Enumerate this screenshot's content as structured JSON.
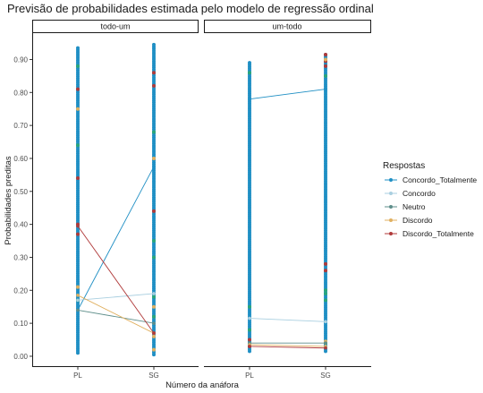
{
  "chart_data": {
    "type": "scatter",
    "title": "Previsão de probabilidades estimada pelo modelo de regressão ordinal",
    "xlabel": "Número da anáfora",
    "ylabel": "Probabilidades preditas",
    "categories": [
      "PL",
      "SG"
    ],
    "ylim": [
      -0.03,
      0.98
    ],
    "yticks": [
      0.0,
      0.1,
      0.2,
      0.3,
      0.4,
      0.5,
      0.6,
      0.7,
      0.8,
      0.9
    ],
    "ytick_labels": [
      "0.00",
      "0.10",
      "0.20",
      "0.30",
      "0.40",
      "0.50",
      "0.60",
      "0.70",
      "0.80",
      "0.90"
    ],
    "grid": false,
    "legend": {
      "title": "Respostas",
      "position": "right",
      "entries": [
        "Concordo_Totalmente",
        "Concordo",
        "Neutro",
        "Discordo",
        "Discordo_Totalmente"
      ]
    },
    "colors": {
      "Concordo_Totalmente": "#1f8fc4",
      "Concordo": "#a9cfe0",
      "Neutro": "#5e8e8a",
      "Discordo": "#e0b060",
      "Discordo_Totalmente": "#b03a3a",
      "Neutro_points": "#2aa67a"
    },
    "panels": [
      {
        "label": "todo-um",
        "ranges": {
          "PL": [
            0.01,
            0.935
          ],
          "SG": [
            0.005,
            0.945
          ]
        },
        "lines": [
          {
            "series": "Concordo_Totalmente",
            "values": [
              0.14,
              0.575
            ]
          },
          {
            "series": "Concordo",
            "values": [
              0.17,
              0.19
            ]
          },
          {
            "series": "Neutro",
            "values": [
              0.14,
              0.1
            ]
          },
          {
            "series": "Discordo",
            "values": [
              0.185,
              0.07
            ]
          },
          {
            "series": "Discordo_Totalmente",
            "values": [
              0.395,
              0.07
            ]
          }
        ],
        "accents": [
          {
            "series": "Discordo_Totalmente",
            "cat": "PL",
            "values": [
              0.81,
              0.54,
              0.4,
              0.37
            ]
          },
          {
            "series": "Discordo_Totalmente",
            "cat": "SG",
            "values": [
              0.86,
              0.82,
              0.44,
              0.07
            ]
          },
          {
            "series": "Neutro_points",
            "cat": "PL",
            "values": [
              0.88,
              0.64,
              0.17
            ]
          },
          {
            "series": "Neutro_points",
            "cat": "SG",
            "values": [
              0.68,
              0.35,
              0.3,
              0.18,
              0.12
            ]
          },
          {
            "series": "Discordo",
            "cat": "PL",
            "values": [
              0.75,
              0.21
            ]
          },
          {
            "series": "Discordo",
            "cat": "SG",
            "values": [
              0.6,
              0.15,
              0.06,
              0.02
            ]
          }
        ]
      },
      {
        "label": "um-todo",
        "ranges": {
          "PL": [
            0.015,
            0.89
          ],
          "SG": [
            0.015,
            0.915
          ]
        },
        "lines": [
          {
            "series": "Concordo_Totalmente",
            "values": [
              0.78,
              0.81
            ]
          },
          {
            "series": "Concordo",
            "values": [
              0.115,
              0.105
            ]
          },
          {
            "series": "Neutro",
            "values": [
              0.04,
              0.04
            ]
          },
          {
            "series": "Discordo",
            "values": [
              0.035,
              0.03
            ]
          },
          {
            "series": "Discordo_Totalmente",
            "values": [
              0.03,
              0.025
            ]
          }
        ],
        "accents": [
          {
            "series": "Discordo_Totalmente",
            "cat": "SG",
            "values": [
              0.915,
              0.895,
              0.88,
              0.28,
              0.26
            ]
          },
          {
            "series": "Discordo_Totalmente",
            "cat": "PL",
            "values": [
              0.03,
              0.05
            ]
          },
          {
            "series": "Neutro_points",
            "cat": "PL",
            "values": [
              0.86,
              0.15,
              0.08
            ]
          },
          {
            "series": "Neutro_points",
            "cat": "SG",
            "values": [
              0.85,
              0.2,
              0.19,
              0.17,
              0.04
            ]
          },
          {
            "series": "Discordo",
            "cat": "SG",
            "values": [
              0.9,
              0.045
            ]
          }
        ]
      }
    ]
  }
}
